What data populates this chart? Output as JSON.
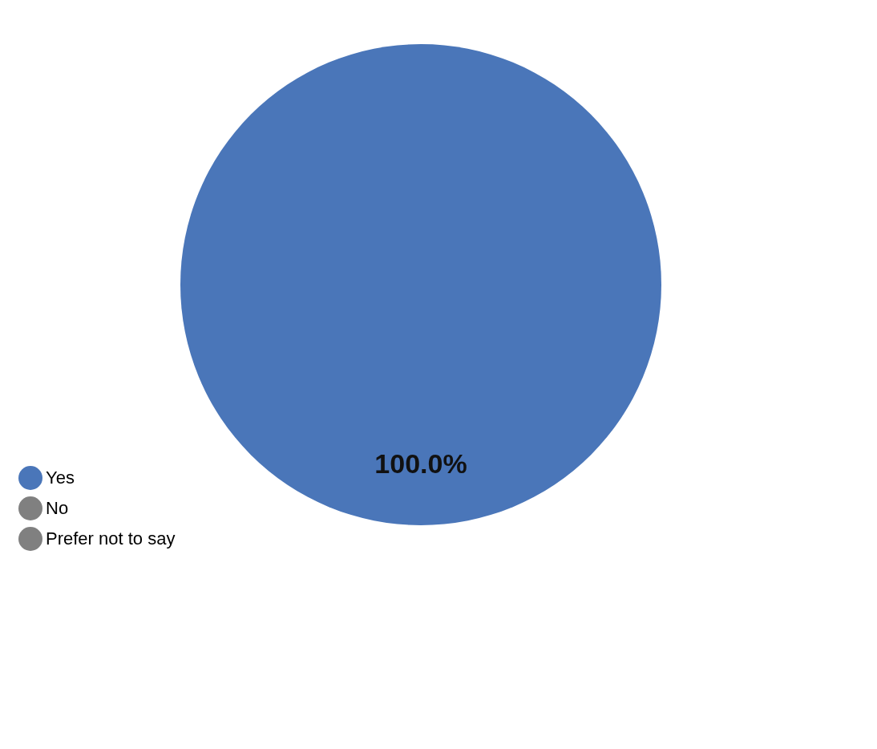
{
  "chart_data": {
    "type": "pie",
    "categories": [
      "Yes",
      "No",
      "Prefer not to say"
    ],
    "values": [
      100,
      0,
      0
    ],
    "colors": [
      "#4a76b9",
      "#808080",
      "#808080"
    ],
    "value_labels": [
      "100.0%",
      null,
      null
    ],
    "legend": "bottom left"
  }
}
